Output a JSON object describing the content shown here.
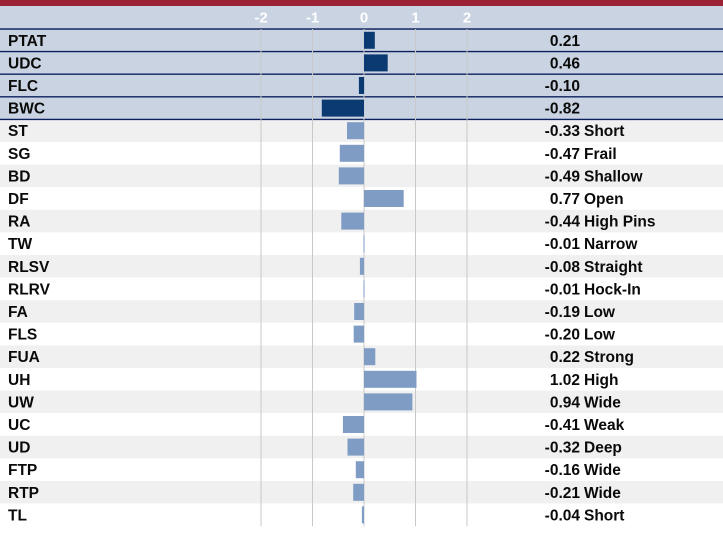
{
  "chart_data": {
    "type": "bar",
    "orientation": "horizontal",
    "title": "",
    "xlabel": "",
    "ylabel": "",
    "xlim": [
      -2,
      2
    ],
    "x_ticks": [
      "-2",
      "-1",
      "0",
      "1",
      "2"
    ],
    "grid": true,
    "colors": {
      "top_rule": "#9b2335",
      "header_bg": "#c9d3e2",
      "highlight_bg": "#c9d3e2",
      "alt_row_bg": "#f0f0f0",
      "row_bg": "#ffffff",
      "highlight_bar": "#0b3a73",
      "bar": "#7f9cc5",
      "text": "#0a0a0a",
      "axis_text": "#ffffff",
      "grid_line": "#c8c8c8",
      "divider": "#0b1f5c"
    },
    "rows": [
      {
        "label": "PTAT",
        "value": 0.21,
        "value_text": "0.21",
        "descriptor": "",
        "highlight": true
      },
      {
        "label": "UDC",
        "value": 0.46,
        "value_text": "0.46",
        "descriptor": "",
        "highlight": true
      },
      {
        "label": "FLC",
        "value": -0.1,
        "value_text": "-0.10",
        "descriptor": "",
        "highlight": true
      },
      {
        "label": "BWC",
        "value": -0.82,
        "value_text": "-0.82",
        "descriptor": "",
        "highlight": true
      },
      {
        "label": "ST",
        "value": -0.33,
        "value_text": "-0.33",
        "descriptor": "Short",
        "highlight": false
      },
      {
        "label": "SG",
        "value": -0.47,
        "value_text": "-0.47",
        "descriptor": "Frail",
        "highlight": false
      },
      {
        "label": "BD",
        "value": -0.49,
        "value_text": "-0.49",
        "descriptor": "Shallow",
        "highlight": false
      },
      {
        "label": "DF",
        "value": 0.77,
        "value_text": "0.77",
        "descriptor": "Open",
        "highlight": false
      },
      {
        "label": "RA",
        "value": -0.44,
        "value_text": "-0.44",
        "descriptor": "High Pins",
        "highlight": false
      },
      {
        "label": "TW",
        "value": -0.01,
        "value_text": "-0.01",
        "descriptor": "Narrow",
        "highlight": false
      },
      {
        "label": "RLSV",
        "value": -0.08,
        "value_text": "-0.08",
        "descriptor": "Straight",
        "highlight": false
      },
      {
        "label": "RLRV",
        "value": -0.01,
        "value_text": "-0.01",
        "descriptor": "Hock-In",
        "highlight": false
      },
      {
        "label": "FA",
        "value": -0.19,
        "value_text": "-0.19",
        "descriptor": "Low",
        "highlight": false
      },
      {
        "label": "FLS",
        "value": -0.2,
        "value_text": "-0.20",
        "descriptor": "Low",
        "highlight": false
      },
      {
        "label": "FUA",
        "value": 0.22,
        "value_text": "0.22",
        "descriptor": "Strong",
        "highlight": false
      },
      {
        "label": "UH",
        "value": 1.02,
        "value_text": "1.02",
        "descriptor": "High",
        "highlight": false
      },
      {
        "label": "UW",
        "value": 0.94,
        "value_text": "0.94",
        "descriptor": "Wide",
        "highlight": false
      },
      {
        "label": "UC",
        "value": -0.41,
        "value_text": "-0.41",
        "descriptor": "Weak",
        "highlight": false
      },
      {
        "label": "UD",
        "value": -0.32,
        "value_text": "-0.32",
        "descriptor": "Deep",
        "highlight": false
      },
      {
        "label": "FTP",
        "value": -0.16,
        "value_text": "-0.16",
        "descriptor": "Wide",
        "highlight": false
      },
      {
        "label": "RTP",
        "value": -0.21,
        "value_text": "-0.21",
        "descriptor": "Wide",
        "highlight": false
      },
      {
        "label": "TL",
        "value": -0.04,
        "value_text": "-0.04",
        "descriptor": "Short",
        "highlight": false
      }
    ]
  }
}
